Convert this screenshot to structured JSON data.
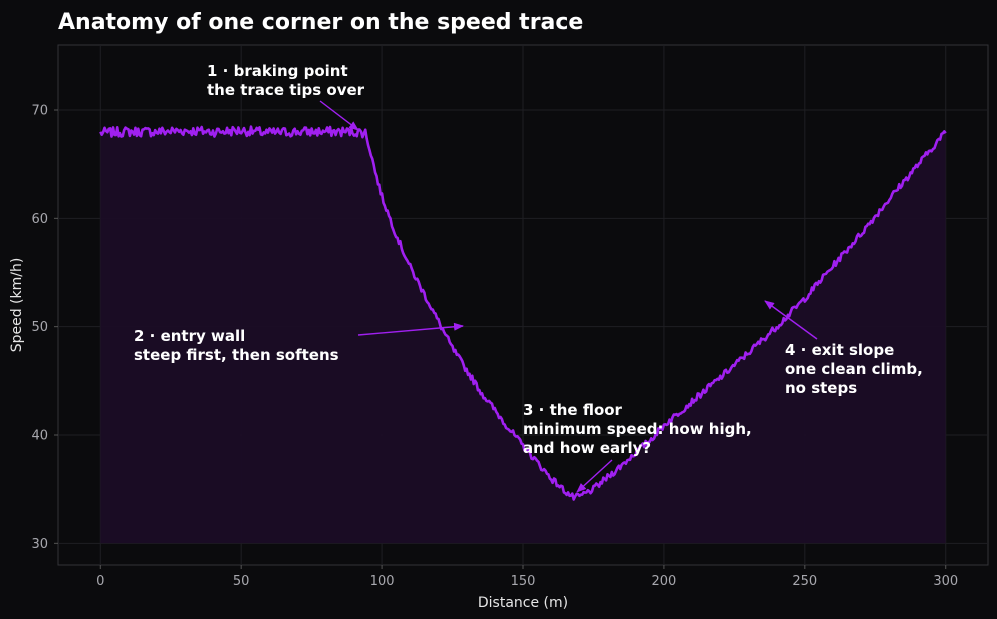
{
  "chart_data": {
    "type": "line",
    "title": "Anatomy of one corner on the speed trace",
    "xlabel": "Distance (m)",
    "ylabel": "Speed (km/h)",
    "xlim": [
      -15,
      315
    ],
    "ylim": [
      28,
      76
    ],
    "xticks": [
      0,
      50,
      100,
      150,
      200,
      250,
      300
    ],
    "yticks": [
      30,
      40,
      50,
      60,
      70
    ],
    "grid": true,
    "fill_baseline": 30,
    "series": [
      {
        "color": "#a020f0",
        "x": [
          0,
          10,
          20,
          30,
          40,
          50,
          60,
          70,
          80,
          90,
          94,
          96,
          98,
          100,
          105,
          110,
          115,
          120,
          125,
          130,
          135,
          140,
          145,
          150,
          155,
          160,
          165,
          168,
          170,
          172,
          175,
          180,
          185,
          190,
          195,
          200,
          210,
          220,
          230,
          240,
          250,
          260,
          270,
          280,
          290,
          300
        ],
        "y": [
          67.9,
          68.0,
          68.0,
          68.1,
          68.0,
          68.1,
          67.9,
          68.0,
          68.0,
          68.0,
          67.9,
          66.0,
          63.8,
          62.0,
          58.5,
          55.5,
          53.0,
          50.5,
          48.0,
          46.0,
          44.0,
          42.3,
          40.6,
          39.0,
          37.5,
          36.0,
          34.8,
          34.2,
          34.3,
          34.6,
          35.0,
          36.1,
          37.2,
          38.4,
          39.5,
          40.9,
          43.1,
          45.3,
          47.6,
          50.0,
          52.6,
          55.6,
          58.6,
          61.8,
          64.9,
          68.0
        ]
      }
    ],
    "annotations": [
      {
        "lines": [
          "1 · braking point",
          "the trace tips over"
        ]
      },
      {
        "lines": [
          "2 · entry wall",
          "steep first, then softens"
        ]
      },
      {
        "lines": [
          "3 · the floor",
          "minimum speed: how high,",
          "and how early?"
        ]
      },
      {
        "lines": [
          "4 · exit slope",
          "one clean climb,",
          "no steps"
        ]
      }
    ],
    "colors": {
      "background": "#0b0b0d",
      "line": "#a020f0",
      "fill": "#1b0d26",
      "grid": "#1f1f23",
      "spine": "#333338"
    }
  }
}
